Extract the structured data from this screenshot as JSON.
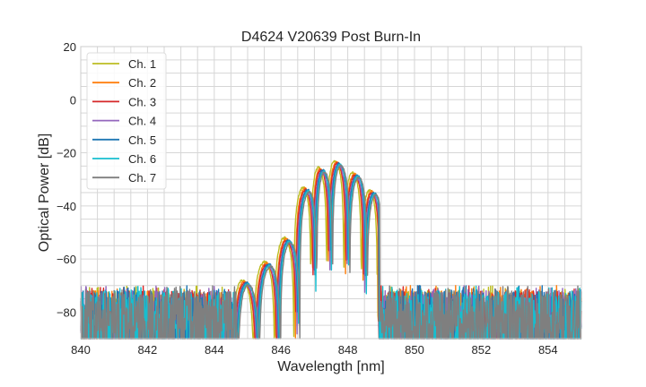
{
  "chart_data": {
    "type": "line",
    "title": "D4624 V20639 Post Burn-In",
    "xlabel": "Wavelength [nm]",
    "ylabel": "Optical Power [dB]",
    "xlim": [
      840,
      855
    ],
    "ylim": [
      -90,
      20
    ],
    "xticks": [
      840,
      842,
      844,
      846,
      848,
      850,
      852,
      854
    ],
    "yticks": [
      20,
      0,
      -20,
      -40,
      -60,
      -80
    ],
    "grid": true,
    "grid_minor_x_step": 0.5,
    "grid_minor_y_step": 5,
    "legend_position": "top-left",
    "noise_floor_db": [
      -90,
      -72
    ],
    "base_lobes": [
      [
        844.84,
        -68
      ],
      [
        845.51,
        -61
      ],
      [
        846.1,
        -52
      ],
      [
        846.67,
        -33
      ],
      [
        847.12,
        -25.5
      ],
      [
        847.61,
        -23
      ],
      [
        848.15,
        -27.5
      ],
      [
        848.66,
        -34
      ]
    ],
    "band_edge_nm": [
      844.6,
      848.9
    ],
    "series": [
      {
        "name": "Ch. 1",
        "color": "#bcbd22",
        "shift_nm": 0.0,
        "peak_offset_db": 0.0
      },
      {
        "name": "Ch. 2",
        "color": "#ff7f0e",
        "shift_nm": 0.05,
        "peak_offset_db": -0.5
      },
      {
        "name": "Ch. 3",
        "color": "#d62728",
        "shift_nm": 0.07,
        "peak_offset_db": -1.0
      },
      {
        "name": "Ch. 4",
        "color": "#9467bd",
        "shift_nm": 0.1,
        "peak_offset_db": -1.5
      },
      {
        "name": "Ch. 5",
        "color": "#1f77b4",
        "shift_nm": 0.13,
        "peak_offset_db": -1.0
      },
      {
        "name": "Ch. 6",
        "color": "#17becf",
        "shift_nm": 0.15,
        "peak_offset_db": -1.5
      },
      {
        "name": "Ch. 7",
        "color": "#7f7f7f",
        "shift_nm": 0.18,
        "peak_offset_db": -1.8
      }
    ]
  }
}
